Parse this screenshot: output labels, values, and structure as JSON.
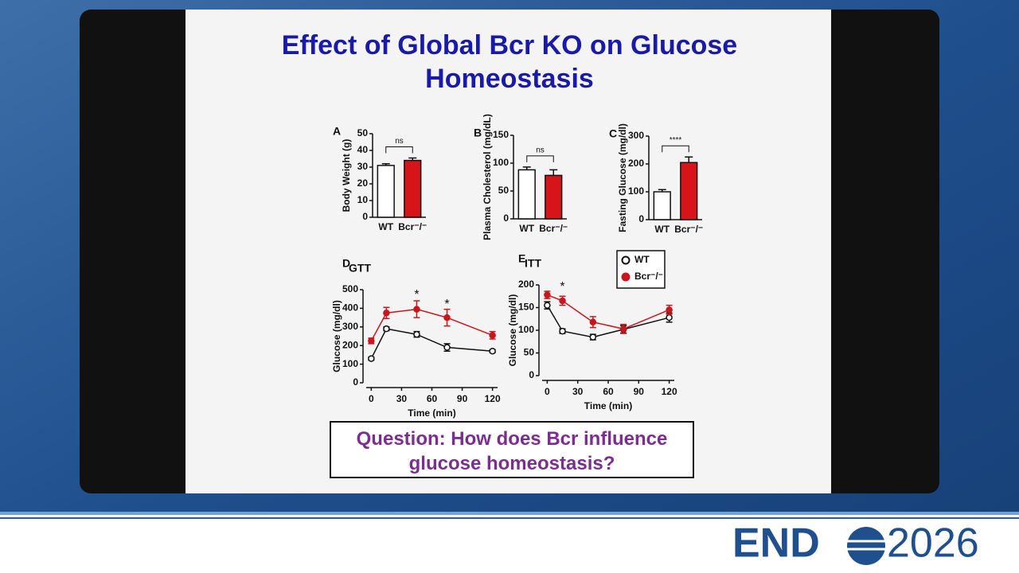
{
  "slide_title": "Effect of Global Bcr KO on Glucose Homeostasis",
  "question": "Question: How does Bcr influence glucose homeostasis?",
  "logo": {
    "left": "END",
    "right": "2026"
  },
  "chart_data": [
    {
      "type": "bar",
      "panel": "A",
      "ylabel": "Body Weight (g)",
      "categories": [
        "WT",
        "Bcr⁻/⁻"
      ],
      "values": [
        31,
        34
      ],
      "errors": [
        1,
        1.5
      ],
      "colors": [
        "#ffffff",
        "#d7141a"
      ],
      "ylim": [
        0,
        50
      ],
      "yticks": [
        0,
        10,
        20,
        30,
        40,
        50
      ],
      "annotation": "ns"
    },
    {
      "type": "bar",
      "panel": "B",
      "ylabel": "Plasma Cholesterol (mg/dL)",
      "categories": [
        "WT",
        "Bcr⁻/⁻"
      ],
      "values": [
        88,
        78
      ],
      "errors": [
        5,
        10
      ],
      "colors": [
        "#ffffff",
        "#d7141a"
      ],
      "ylim": [
        0,
        150
      ],
      "yticks": [
        0,
        50,
        100,
        150
      ],
      "annotation": "ns"
    },
    {
      "type": "bar",
      "panel": "C",
      "ylabel": "Fasting Glucose (mg/dl)",
      "categories": [
        "WT",
        "Bcr⁻/⁻"
      ],
      "values": [
        100,
        205
      ],
      "errors": [
        8,
        20
      ],
      "colors": [
        "#ffffff",
        "#d7141a"
      ],
      "ylim": [
        0,
        300
      ],
      "yticks": [
        0,
        100,
        200,
        300
      ],
      "annotation": "****"
    },
    {
      "type": "line",
      "panel": "D",
      "title": "GTT",
      "xlabel": "Time (min)",
      "ylabel": "Glucose (mg/dl)",
      "x": [
        0,
        15,
        45,
        75,
        120
      ],
      "series": [
        {
          "color": "#111111",
          "fill": "#ffffff",
          "values": [
            130,
            290,
            260,
            190,
            170
          ],
          "errors": [
            8,
            10,
            15,
            20,
            8
          ]
        },
        {
          "color": "#c8161d",
          "fill": "#c8161d",
          "values": [
            225,
            375,
            395,
            350,
            255
          ],
          "errors": [
            15,
            30,
            45,
            45,
            20
          ]
        }
      ],
      "xlim": [
        -5,
        125
      ],
      "xticks": [
        0,
        30,
        60,
        90,
        120
      ],
      "ylim": [
        0,
        500
      ],
      "yticks": [
        0,
        100,
        200,
        300,
        400,
        500
      ],
      "stars": [
        {
          "x": 45,
          "y": 470,
          "text": "*"
        },
        {
          "x": 75,
          "y": 420,
          "text": "*"
        }
      ]
    },
    {
      "type": "line",
      "panel": "E",
      "title": "ITT",
      "xlabel": "Time (min)",
      "ylabel": "Glucose (mg/dl)",
      "x": [
        0,
        15,
        45,
        75,
        120
      ],
      "series": [
        {
          "name": "WT",
          "color": "#111111",
          "fill": "#ffffff",
          "values": [
            155,
            98,
            85,
            102,
            128
          ],
          "errors": [
            8,
            5,
            6,
            8,
            10
          ]
        },
        {
          "name": "Bcr⁻/⁻",
          "color": "#c8161d",
          "fill": "#c8161d",
          "values": [
            178,
            165,
            118,
            103,
            145
          ],
          "errors": [
            8,
            10,
            12,
            10,
            10
          ]
        }
      ],
      "xlim": [
        -5,
        125
      ],
      "xticks": [
        0,
        30,
        60,
        90,
        120
      ],
      "ylim": [
        0,
        200
      ],
      "yticks": [
        0,
        50,
        100,
        150,
        200
      ],
      "stars": [
        {
          "x": 15,
          "y": 195,
          "text": "*"
        }
      ]
    }
  ]
}
